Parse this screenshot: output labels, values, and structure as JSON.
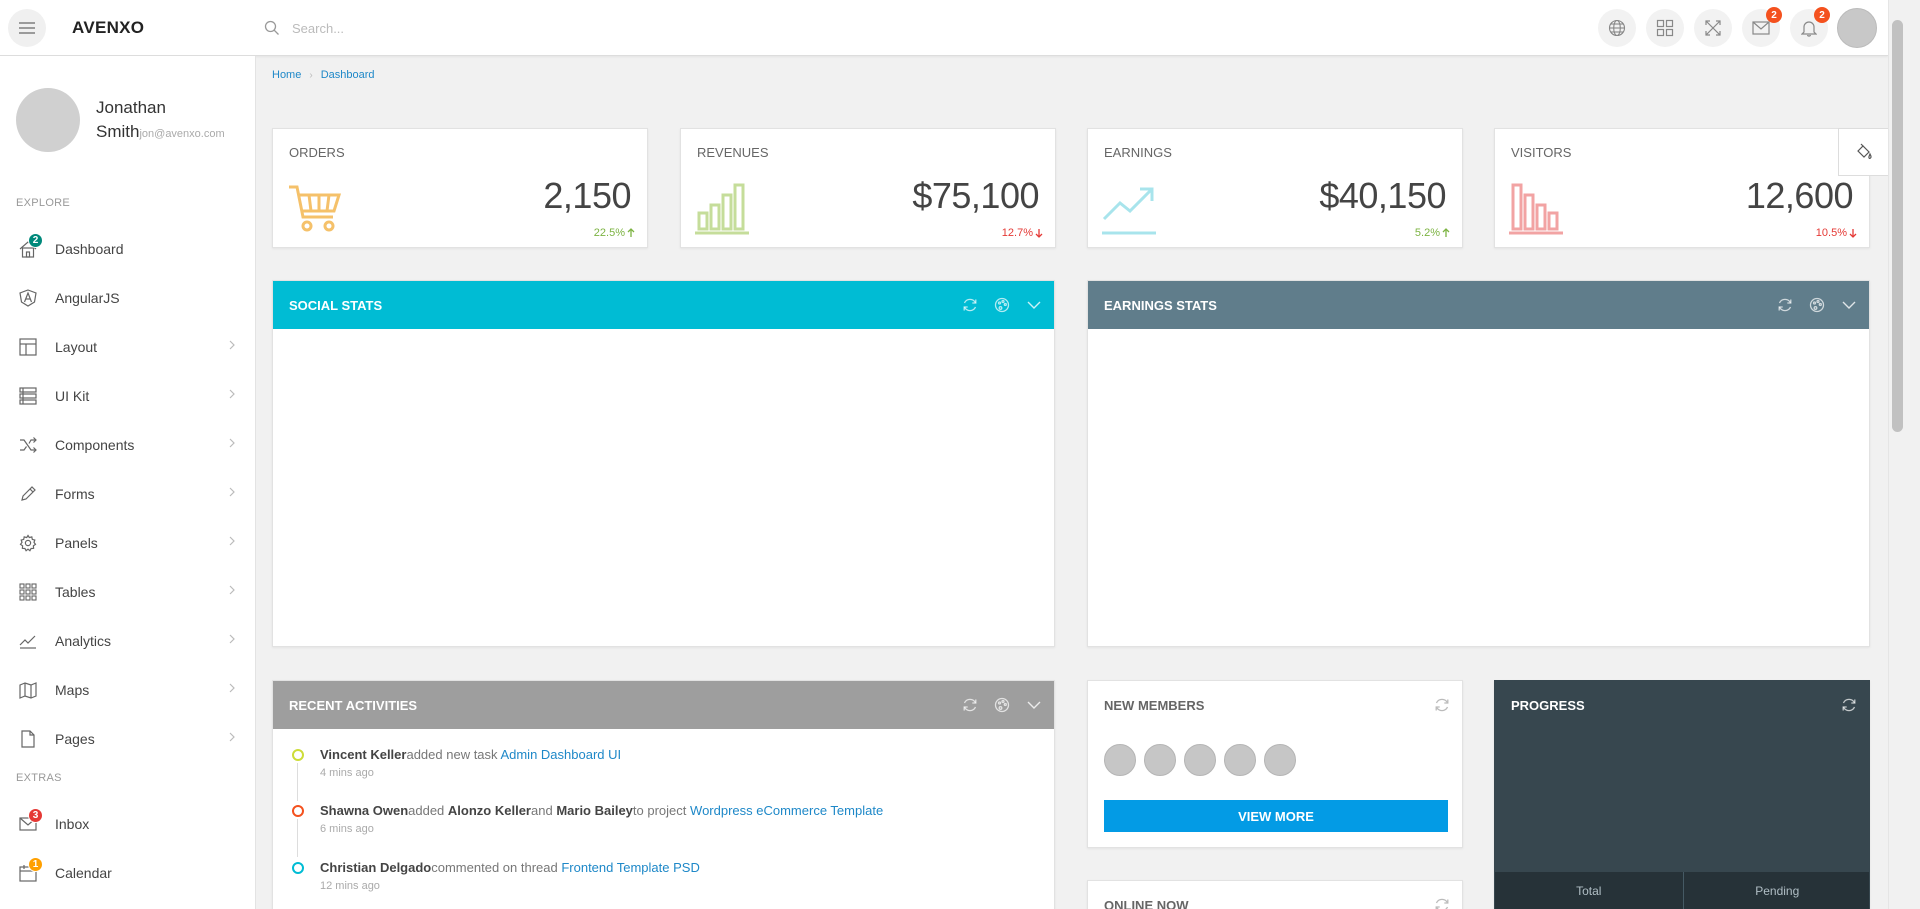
{
  "app": {
    "brand": "AVENXO"
  },
  "topbar": {
    "search_placeholder": "Search...",
    "messages_badge": "2",
    "notifications_badge": "2"
  },
  "user": {
    "name": "Jonathan Smith",
    "email": "jon@avenxo.com"
  },
  "sidebar": {
    "explore_label": "EXPLORE",
    "extras_label": "EXTRAS",
    "items": [
      {
        "label": "Dashboard",
        "icon": "home-icon",
        "badge": "2"
      },
      {
        "label": "AngularJS",
        "icon": "angular-shield-icon"
      },
      {
        "label": "Layout",
        "icon": "layout-icon"
      },
      {
        "label": "UI Kit",
        "icon": "ui-kit-icon"
      },
      {
        "label": "Components",
        "icon": "shuffle-icon"
      },
      {
        "label": "Forms",
        "icon": "pencil-icon"
      },
      {
        "label": "Panels",
        "icon": "gear-icon"
      },
      {
        "label": "Tables",
        "icon": "grid-icon"
      },
      {
        "label": "Analytics",
        "icon": "trend-line-icon"
      },
      {
        "label": "Maps",
        "icon": "map-icon"
      },
      {
        "label": "Pages",
        "icon": "page-icon"
      }
    ],
    "extras": [
      {
        "label": "Inbox",
        "icon": "mail-icon",
        "badge": "3"
      },
      {
        "label": "Calendar",
        "icon": "calendar-icon",
        "badge": "1"
      }
    ]
  },
  "breadcrumb": {
    "home": "Home",
    "current": "Dashboard"
  },
  "stats": [
    {
      "title": "ORDERS",
      "value": "2,150",
      "change": "22.5%",
      "direction": "up",
      "color": "#f5c16a"
    },
    {
      "title": "REVENUES",
      "value": "$75,100",
      "change": "12.7%",
      "direction": "down",
      "color": "#c5dd9a"
    },
    {
      "title": "EARNINGS",
      "value": "$40,150",
      "change": "5.2%",
      "direction": "up",
      "color": "#a8e4ec"
    },
    {
      "title": "VISITORS",
      "value": "12,600",
      "change": "10.5%",
      "direction": "down",
      "color": "#f2a3a3"
    }
  ],
  "panels": {
    "social": {
      "title": "SOCIAL STATS",
      "color": "#00bcd4"
    },
    "earnings": {
      "title": "EARNINGS STATS",
      "color": "#607d8b"
    },
    "activities": {
      "title": "RECENT ACTIVITIES",
      "color": "#9e9e9e"
    },
    "members": {
      "title": "NEW MEMBERS",
      "button": "VIEW MORE"
    },
    "online": {
      "title": "ONLINE NOW"
    },
    "progress": {
      "title": "PROGRESS",
      "color": "#37474f",
      "total_label": "Total",
      "pending_label": "Pending"
    }
  },
  "activities": [
    {
      "actor": "Vincent Keller",
      "verb": "added new task",
      "link": "Admin Dashboard UI",
      "time": "4 mins ago",
      "color": "#cddc39"
    },
    {
      "actor": "Shawna Owen",
      "verb": "added",
      "actor2": "Alonzo Keller",
      "and": "and",
      "actor3": "Mario Bailey",
      "verb2": "to project",
      "link": "Wordpress eCommerce Template",
      "time": "6 mins ago",
      "color": "#f4511e"
    },
    {
      "actor": "Christian Delgado",
      "verb": "commented on thread",
      "link": "Frontend Template PSD",
      "time": "12 mins ago",
      "color": "#00bcd4"
    }
  ],
  "colors": {
    "up": "#7cb342",
    "down": "#e53935",
    "link": "#1e88c8"
  }
}
